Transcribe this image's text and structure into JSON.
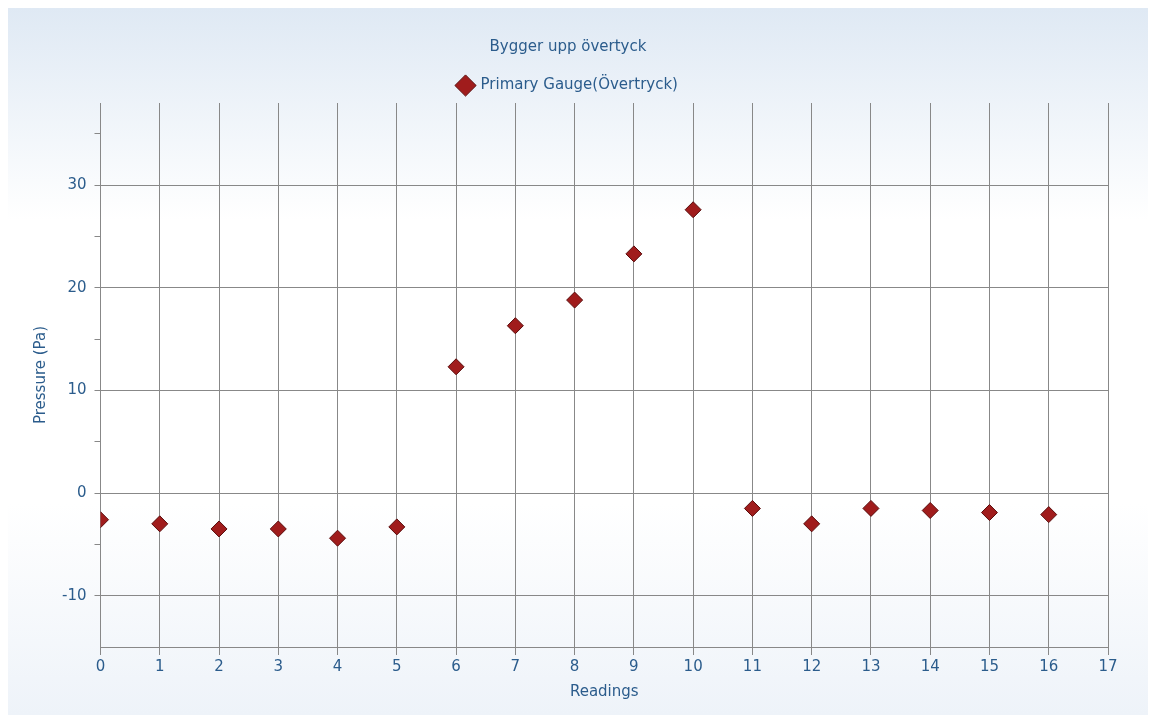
{
  "chart_data": {
    "type": "scatter",
    "title": "Bygger upp övertyck",
    "xlabel": "Readings",
    "ylabel": "Pressure (Pa)",
    "x": [
      0,
      1,
      2,
      3,
      4,
      5,
      6,
      7,
      8,
      9,
      10,
      11,
      12,
      13,
      14,
      15,
      16
    ],
    "series": [
      {
        "name": "Primary Gauge(Övertryck)",
        "color": "#a01c1c",
        "values": [
          -2.6,
          -3.0,
          -3.5,
          -3.5,
          -4.4,
          -3.3,
          12.3,
          16.3,
          18.8,
          23.3,
          27.6,
          -1.5,
          -3.0,
          -1.5,
          -1.7,
          -1.9,
          -2.1
        ]
      }
    ],
    "xlim": [
      0,
      17
    ],
    "xticks": [
      0,
      1,
      2,
      3,
      4,
      5,
      6,
      7,
      8,
      9,
      10,
      11,
      12,
      13,
      14,
      15,
      16,
      17
    ],
    "ylim": [
      -15,
      38
    ],
    "yticks": [
      -10,
      {
        "value": -5,
        "label": null
      },
      0,
      {
        "value": 5,
        "label": null
      },
      10,
      {
        "value": 15,
        "label": null
      },
      20,
      {
        "value": 25,
        "label": null
      },
      30,
      {
        "value": 35,
        "label": null
      }
    ],
    "grid": true,
    "legend": "top",
    "marker": "diamond"
  }
}
